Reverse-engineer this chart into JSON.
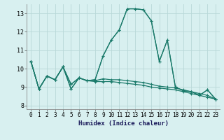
{
  "xlabel": "Humidex (Indice chaleur)",
  "xlim": [
    -0.5,
    23.5
  ],
  "ylim": [
    7.8,
    13.5
  ],
  "yticks": [
    8,
    9,
    10,
    11,
    12,
    13
  ],
  "xticks": [
    0,
    1,
    2,
    3,
    4,
    5,
    6,
    7,
    8,
    9,
    10,
    11,
    12,
    13,
    14,
    15,
    16,
    17,
    18,
    19,
    20,
    21,
    22,
    23
  ],
  "background_color": "#d8f0f0",
  "grid_color": "#b8d8d8",
  "line_color": "#1a7a6a",
  "curves": [
    [
      10.4,
      8.9,
      9.6,
      9.4,
      10.1,
      8.9,
      9.5,
      9.35,
      9.4,
      10.7,
      11.55,
      12.1,
      13.25,
      13.25,
      13.2,
      12.6,
      10.4,
      11.55,
      9.0,
      8.8,
      8.75,
      8.55,
      8.85,
      8.35
    ],
    [
      10.4,
      8.9,
      9.6,
      9.4,
      10.1,
      8.9,
      9.5,
      9.35,
      9.4,
      10.7,
      11.55,
      12.1,
      13.25,
      13.25,
      13.2,
      12.6,
      10.4,
      11.55,
      9.0,
      8.8,
      8.75,
      8.55,
      8.85,
      8.35
    ],
    [
      10.4,
      8.9,
      9.6,
      9.4,
      10.1,
      9.15,
      9.5,
      9.35,
      9.35,
      9.45,
      9.4,
      9.4,
      9.35,
      9.3,
      9.25,
      9.15,
      9.05,
      9.0,
      8.95,
      8.85,
      8.75,
      8.65,
      8.55,
      8.35
    ],
    [
      10.4,
      8.9,
      9.6,
      9.4,
      10.1,
      9.15,
      9.5,
      9.35,
      9.3,
      9.3,
      9.3,
      9.25,
      9.2,
      9.15,
      9.1,
      9.0,
      8.95,
      8.9,
      8.85,
      8.75,
      8.65,
      8.55,
      8.45,
      8.35
    ]
  ]
}
